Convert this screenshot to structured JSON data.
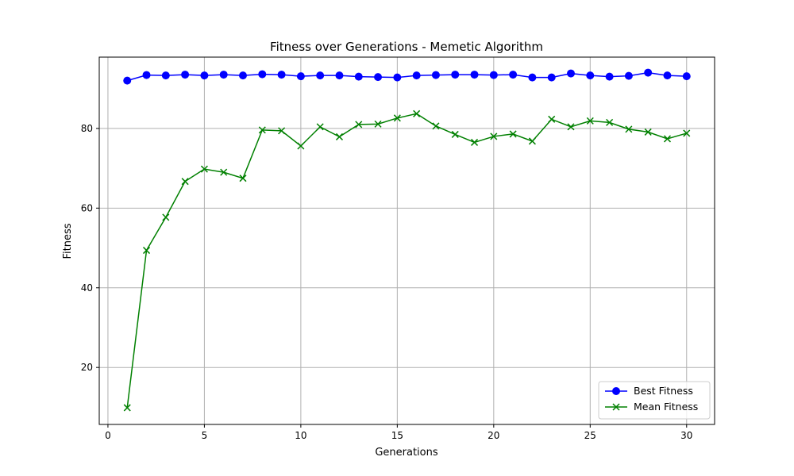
{
  "chart_data": {
    "type": "line",
    "title": "Fitness over Generations - Memetic Algorithm",
    "xlabel": "Generations",
    "ylabel": "Fitness",
    "xlim": [
      -0.45,
      31.45
    ],
    "ylim": [
      5.7,
      97.9
    ],
    "xticks": [
      0,
      5,
      10,
      15,
      20,
      25,
      30
    ],
    "yticks": [
      20,
      40,
      60,
      80
    ],
    "grid": true,
    "legend_position": "lower right",
    "x": [
      1,
      2,
      3,
      4,
      5,
      6,
      7,
      8,
      9,
      10,
      11,
      12,
      13,
      14,
      15,
      16,
      17,
      18,
      19,
      20,
      21,
      22,
      23,
      24,
      25,
      26,
      27,
      28,
      29,
      30
    ],
    "series": [
      {
        "name": "Best Fitness",
        "color": "#0000ff",
        "marker": "circle",
        "values": [
          92.0,
          93.4,
          93.3,
          93.5,
          93.3,
          93.5,
          93.3,
          93.6,
          93.5,
          93.1,
          93.3,
          93.3,
          93.0,
          92.9,
          92.8,
          93.3,
          93.4,
          93.5,
          93.5,
          93.4,
          93.5,
          92.8,
          92.8,
          93.8,
          93.3,
          93.0,
          93.2,
          94.0,
          93.3,
          93.1
        ]
      },
      {
        "name": "Mean Fitness",
        "color": "#008000",
        "marker": "x",
        "values": [
          9.9,
          49.4,
          57.7,
          66.7,
          69.8,
          69.0,
          67.5,
          79.6,
          79.4,
          75.6,
          80.4,
          77.9,
          81.0,
          81.1,
          82.6,
          83.7,
          80.6,
          78.5,
          76.5,
          78.0,
          78.6,
          76.8,
          82.3,
          80.4,
          81.9,
          81.5,
          79.8,
          79.1,
          77.4,
          78.8
        ]
      }
    ]
  }
}
